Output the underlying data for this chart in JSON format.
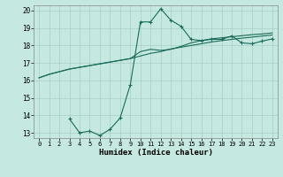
{
  "title": "",
  "xlabel": "Humidex (Indice chaleur)",
  "ylabel": "",
  "background_color": "#c5e8e0",
  "grid_color": "#a8cfc8",
  "line_color": "#1a6b5a",
  "xlim": [
    -0.5,
    23.5
  ],
  "ylim": [
    12.7,
    20.3
  ],
  "yticks": [
    13,
    14,
    15,
    16,
    17,
    18,
    19,
    20
  ],
  "xticks": [
    0,
    1,
    2,
    3,
    4,
    5,
    6,
    7,
    8,
    9,
    10,
    11,
    12,
    13,
    14,
    15,
    16,
    17,
    18,
    19,
    20,
    21,
    22,
    23
  ],
  "line1_x": [
    0,
    1,
    2,
    3,
    4,
    5,
    6,
    7,
    8,
    9,
    10,
    11,
    12,
    13,
    14,
    15,
    16,
    17,
    18,
    19,
    20,
    21,
    22,
    23
  ],
  "line1_y": [
    16.15,
    16.35,
    16.5,
    16.65,
    16.75,
    16.85,
    16.95,
    17.05,
    17.15,
    17.25,
    17.4,
    17.55,
    17.65,
    17.8,
    17.9,
    18.0,
    18.1,
    18.2,
    18.28,
    18.35,
    18.42,
    18.48,
    18.54,
    18.6
  ],
  "line2_x": [
    0,
    1,
    2,
    3,
    4,
    5,
    6,
    7,
    8,
    9,
    10,
    11,
    12,
    13,
    14,
    15,
    16,
    17,
    18,
    19,
    20,
    21,
    22,
    23
  ],
  "line2_y": [
    16.15,
    16.35,
    16.5,
    16.65,
    16.75,
    16.85,
    16.95,
    17.05,
    17.15,
    17.25,
    17.65,
    17.78,
    17.72,
    17.78,
    17.95,
    18.15,
    18.28,
    18.38,
    18.44,
    18.5,
    18.56,
    18.62,
    18.66,
    18.72
  ],
  "line3_x": [
    3,
    4,
    5,
    6,
    7,
    8,
    9,
    10,
    11,
    12,
    13,
    14,
    15,
    16,
    17,
    18,
    19,
    20,
    21,
    22,
    23
  ],
  "line3_y": [
    13.8,
    13.0,
    13.1,
    12.85,
    13.2,
    13.85,
    15.75,
    19.35,
    19.35,
    20.1,
    19.45,
    19.1,
    18.35,
    18.28,
    18.35,
    18.35,
    18.55,
    18.15,
    18.1,
    18.25,
    18.38
  ]
}
